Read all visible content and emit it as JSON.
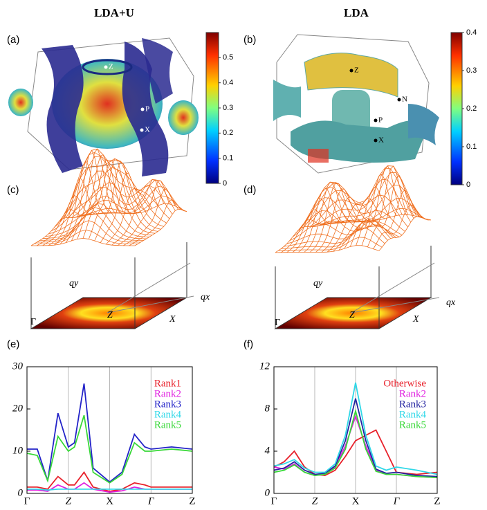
{
  "headers": [
    "LDA+U",
    "LDA"
  ],
  "panels": [
    {
      "label": "(a)",
      "markers": [
        "Z",
        "P",
        "X"
      ]
    },
    {
      "label": "(b)",
      "markers": [
        "Z",
        "N",
        "P",
        "X"
      ]
    },
    {
      "label": "(c)",
      "axes": [
        "qy",
        "qx"
      ],
      "points": [
        "Γ",
        "Z",
        "X"
      ]
    },
    {
      "label": "(d)",
      "axes": [
        "qy",
        "qx"
      ],
      "points": [
        "Γ",
        "Z",
        "X"
      ]
    },
    {
      "label": "(e)"
    },
    {
      "label": "(f)"
    }
  ],
  "colorbars": [
    {
      "ylim": [
        0,
        0.6
      ],
      "yticks": [
        0,
        0.1,
        0.2,
        0.3,
        0.4,
        0.5
      ]
    },
    {
      "ylim": [
        0,
        0.4
      ],
      "yticks": [
        0,
        0.1,
        0.2,
        0.3,
        0.4
      ]
    }
  ],
  "chart_data": [
    {
      "type": "line",
      "x": [
        0,
        0.25,
        0.5,
        0.75,
        1,
        1.15,
        1.38,
        1.6,
        2,
        2.3,
        2.6,
        2.85,
        3,
        3.5,
        4
      ],
      "xlim": [
        0,
        4
      ],
      "xticks": [
        {
          "value": 0,
          "label": "Γ"
        },
        {
          "value": 1,
          "label": "Z"
        },
        {
          "value": 2,
          "label": "X"
        },
        {
          "value": 3,
          "label": "Γ"
        },
        {
          "value": 4,
          "label": "Z"
        }
      ],
      "ylim": [
        0,
        30
      ],
      "yticks": [
        0,
        10,
        20,
        30
      ],
      "grid": true,
      "legend": "upper right",
      "series": [
        {
          "name": "Rank1",
          "color": "#e8202a",
          "values": [
            1.5,
            1.5,
            1,
            4,
            2,
            2,
            5,
            1.5,
            0.5,
            1,
            2.5,
            2,
            1.5,
            1.5,
            1.5
          ]
        },
        {
          "name": "Rank2",
          "color": "#e020e0",
          "values": [
            0.8,
            0.8,
            0.5,
            2,
            1,
            1,
            2.5,
            1,
            0.3,
            0.6,
            1.5,
            1,
            1,
            1,
            1
          ]
        },
        {
          "name": "Rank3",
          "color": "#2323c8",
          "values": [
            10.5,
            10.5,
            3,
            19,
            11,
            12,
            26,
            6,
            2.7,
            5,
            14,
            11,
            10.5,
            11,
            10.5
          ]
        },
        {
          "name": "Rank4",
          "color": "#30d8e8",
          "values": [
            1,
            1,
            0.8,
            1,
            1,
            1,
            1,
            1,
            1,
            1,
            1,
            1,
            1,
            1,
            1
          ]
        },
        {
          "name": "Rank5",
          "color": "#38d838",
          "values": [
            9.5,
            9,
            3,
            13.5,
            10,
            11,
            18.5,
            5,
            2.5,
            4.5,
            12,
            10,
            10,
            10.5,
            10
          ]
        }
      ]
    },
    {
      "type": "line",
      "x": [
        0,
        0.25,
        0.5,
        0.75,
        1,
        1.25,
        1.5,
        1.75,
        2,
        2.25,
        2.5,
        2.75,
        3,
        3.5,
        4
      ],
      "xlim": [
        0,
        4
      ],
      "xticks": [
        {
          "value": 0,
          "label": "Γ"
        },
        {
          "value": 1,
          "label": "Z"
        },
        {
          "value": 2,
          "label": "X"
        },
        {
          "value": 3,
          "label": "Γ"
        },
        {
          "value": 4,
          "label": "Z"
        }
      ],
      "ylim": [
        0,
        12
      ],
      "yticks": [
        0,
        4,
        8,
        12
      ],
      "grid": true,
      "legend": "upper right",
      "series": [
        {
          "name": "Otherwise",
          "color": "#e8202a",
          "values": [
            2.5,
            3,
            4,
            2.5,
            1.8,
            1.7,
            2.2,
            3.5,
            5,
            5.5,
            6,
            4,
            2,
            1.8,
            2
          ]
        },
        {
          "name": "Rank2",
          "color": "#e020e0",
          "values": [
            2.5,
            2.3,
            2.8,
            2,
            1.7,
            1.8,
            2.5,
            4.5,
            7.3,
            4.5,
            2.2,
            1.8,
            1.8,
            1.6,
            1.5
          ]
        },
        {
          "name": "Rank3",
          "color": "#2323a0",
          "values": [
            2.2,
            2.4,
            3,
            2.2,
            1.8,
            1.9,
            2.6,
            5,
            9,
            5,
            2.3,
            1.9,
            2,
            1.7,
            1.6
          ]
        },
        {
          "name": "Rank4",
          "color": "#30d8e8",
          "values": [
            2.6,
            2.8,
            3.2,
            2.4,
            2,
            2,
            2.8,
            5.5,
            10.5,
            5.5,
            2.6,
            2.2,
            2.5,
            2.2,
            1.8
          ]
        },
        {
          "name": "Rank5",
          "color": "#38d838",
          "values": [
            2,
            2.2,
            2.7,
            2,
            1.7,
            1.8,
            2.4,
            4.2,
            7.8,
            4.2,
            2.1,
            1.8,
            1.8,
            1.6,
            1.5
          ]
        }
      ]
    }
  ]
}
